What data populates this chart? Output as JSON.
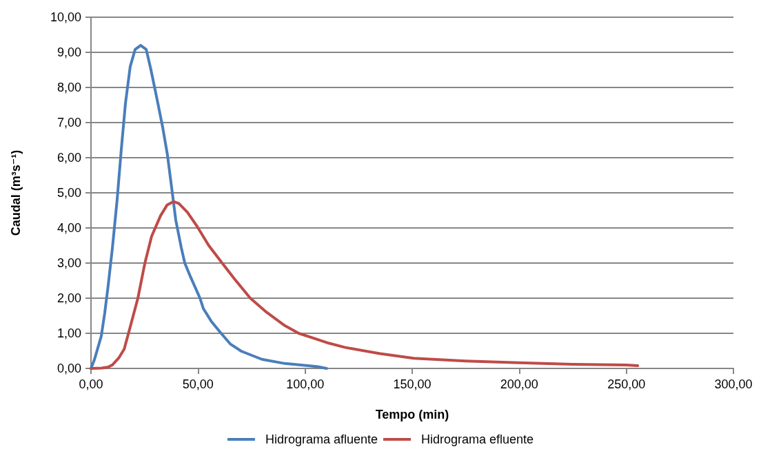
{
  "chart_data": {
    "type": "line",
    "xlabel": "Tempo (min)",
    "ylabel": "Caudal (m³s⁻¹)",
    "xlim": [
      0,
      300
    ],
    "xticks": [
      {
        "value": 0,
        "label": "0,00"
      },
      {
        "value": 50,
        "label": "50,00"
      },
      {
        "value": 100,
        "label": "100,00"
      },
      {
        "value": 150,
        "label": "150,00"
      },
      {
        "value": 200,
        "label": "200,00"
      },
      {
        "value": 250,
        "label": "250,00"
      },
      {
        "value": 300,
        "label": "300,00"
      }
    ],
    "ylim": [
      0,
      10
    ],
    "yticks": [
      {
        "value": 0,
        "label": "0,00"
      },
      {
        "value": 1,
        "label": "1,00"
      },
      {
        "value": 2,
        "label": "2,00"
      },
      {
        "value": 3,
        "label": "3,00"
      },
      {
        "value": 4,
        "label": "4,00"
      },
      {
        "value": 5,
        "label": "5,00"
      },
      {
        "value": 6,
        "label": "6,00"
      },
      {
        "value": 7,
        "label": "7,00"
      },
      {
        "value": 8,
        "label": "8,00"
      },
      {
        "value": 9,
        "label": "9,00"
      },
      {
        "value": 10,
        "label": "10,00"
      }
    ],
    "grid": "y",
    "legend": "bottom",
    "marker": "none",
    "line_style": "solid",
    "series": [
      {
        "name": "Hidrograma afluente",
        "color": "#4a7ebb",
        "x": [
          0,
          1.6,
          4.8,
          6.4,
          8,
          10,
          12.2,
          14.2,
          16.1,
          18.3,
          20.6,
          23.2,
          25.8,
          27.9,
          30.9,
          33.5,
          35.7,
          38.5,
          39.6,
          42.2,
          43.8,
          46.6,
          50.9,
          52.5,
          56.2,
          60.5,
          65,
          70.2,
          79.8,
          90.5,
          101.3,
          106,
          110
        ],
        "values": [
          0,
          0.25,
          0.92,
          1.57,
          2.35,
          3.43,
          4.8,
          6.27,
          7.55,
          8.59,
          9.08,
          9.2,
          9.08,
          8.53,
          7.65,
          6.86,
          6.08,
          4.75,
          4.22,
          3.43,
          3.0,
          2.59,
          2.0,
          1.7,
          1.34,
          1.02,
          0.7,
          0.49,
          0.26,
          0.14,
          0.08,
          0.05,
          0
        ]
      },
      {
        "name": "Hidrograma efluente",
        "color": "#be4b48",
        "x": [
          0,
          5,
          8,
          10,
          13,
          15.5,
          17.6,
          21.9,
          25.1,
          28.3,
          32.5,
          35.5,
          38.5,
          41,
          45,
          49.8,
          55,
          61.5,
          67,
          74.4,
          82,
          90.5,
          97,
          104.5,
          111,
          118.5,
          135,
          150.7,
          175,
          200,
          225,
          250,
          255.3
        ],
        "values": [
          0,
          0.01,
          0.04,
          0.1,
          0.3,
          0.55,
          1.02,
          2.0,
          2.98,
          3.76,
          4.35,
          4.65,
          4.75,
          4.7,
          4.45,
          4.02,
          3.5,
          2.98,
          2.55,
          2.0,
          1.6,
          1.22,
          1.0,
          0.85,
          0.72,
          0.6,
          0.42,
          0.29,
          0.21,
          0.16,
          0.12,
          0.1,
          0.08
        ]
      }
    ]
  }
}
